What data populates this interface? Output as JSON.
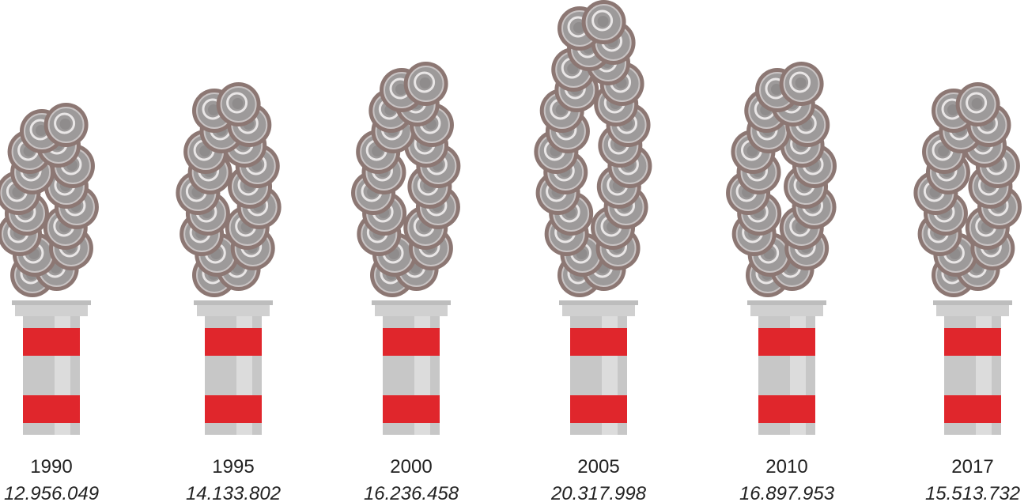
{
  "chart_data": {
    "type": "pictograph",
    "categories": [
      "1990",
      "1995",
      "2000",
      "2005",
      "2010",
      "2017"
    ],
    "values": [
      12956049,
      14133802,
      16236458,
      20317998,
      16897953,
      15513732
    ],
    "value_labels": [
      "12.956.049",
      "14.133.802",
      "16.236.458",
      "20.317.998",
      "16.897.953",
      "15.513.732"
    ],
    "color": "#e0262c"
  }
}
